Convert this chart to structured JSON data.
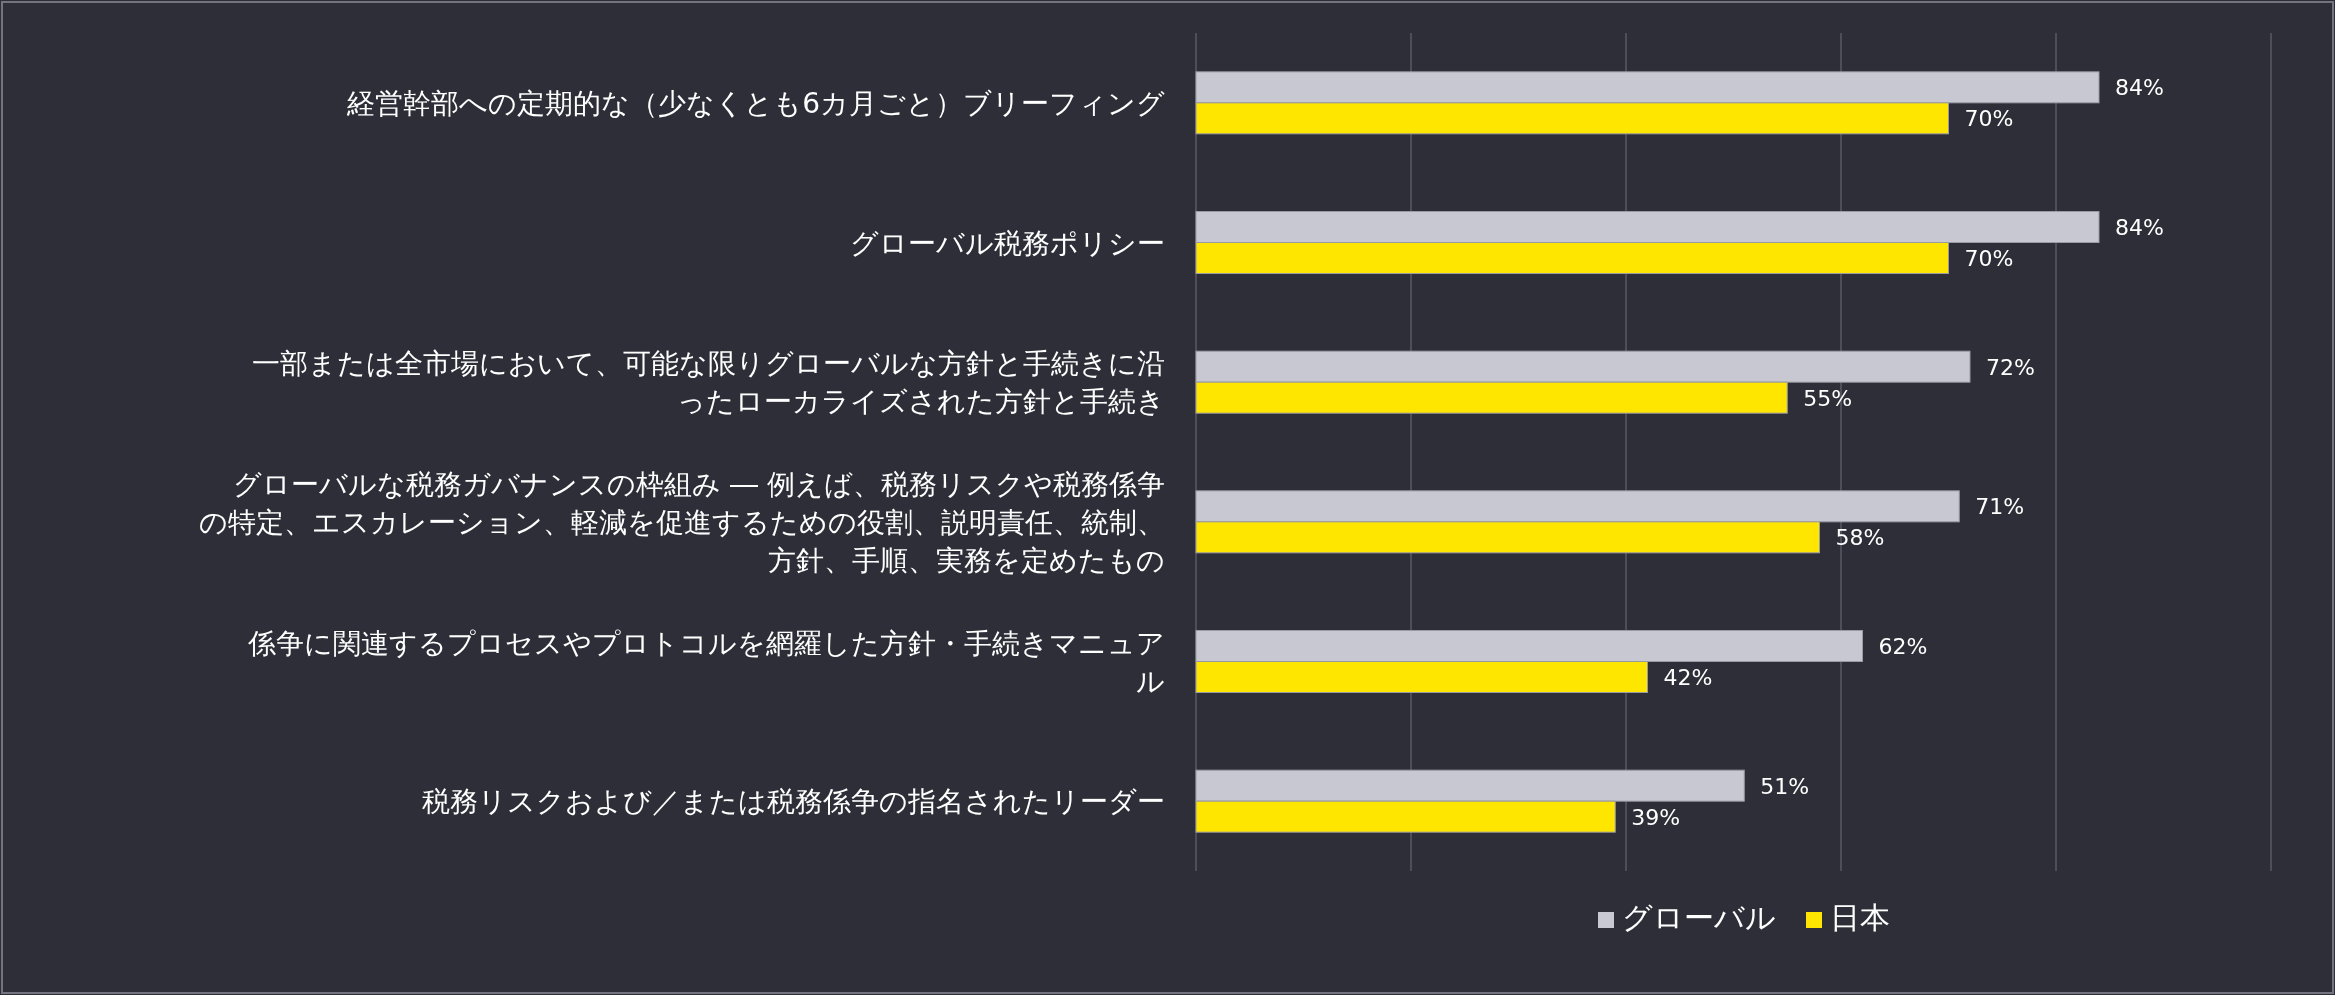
{
  "chart_data": {
    "type": "bar",
    "orientation": "horizontal",
    "categories": [
      "経営幹部への定期的な（少なくとも6カ月ごと）ブリーフィング",
      "グローバル税務ポリシー",
      "一部または全市場において、可能な限りグローバルな方針と手続きに沿ったローカライズされた方針と手続き",
      "グローバルな税務ガバナンスの枠組み ― 例えば、税務リスクや税務係争の特定、エスカレーション、軽減を促進するための役割、説明責任、統制、方針、手順、実務を定めたもの",
      "係争に関連するプロセスやプロトコルを網羅した方針・手続きマニュアル",
      "税務リスクおよび／または税務係争の指名されたリーダー"
    ],
    "series": [
      {
        "name": "グローバル",
        "color": "#c8c8d2",
        "values": [
          84,
          84,
          72,
          71,
          62,
          51
        ],
        "value_labels": [
          "84%",
          "84%",
          "72%",
          "71%",
          "62%",
          "51%"
        ]
      },
      {
        "name": "日本",
        "color": "#ffe600",
        "values": [
          70,
          70,
          55,
          58,
          42,
          39
        ],
        "value_labels": [
          "70%",
          "70%",
          "55%",
          "58%",
          "42%",
          "39%"
        ]
      }
    ],
    "xlim": [
      0,
      100
    ],
    "xticks": [
      {
        "value": 0,
        "label": null
      },
      {
        "value": 20,
        "label": null
      },
      {
        "value": 40,
        "label": null
      },
      {
        "value": 60,
        "label": null
      },
      {
        "value": 80,
        "label": null
      },
      {
        "value": 100,
        "label": null
      }
    ],
    "grid": "x",
    "legend": "bottom"
  }
}
